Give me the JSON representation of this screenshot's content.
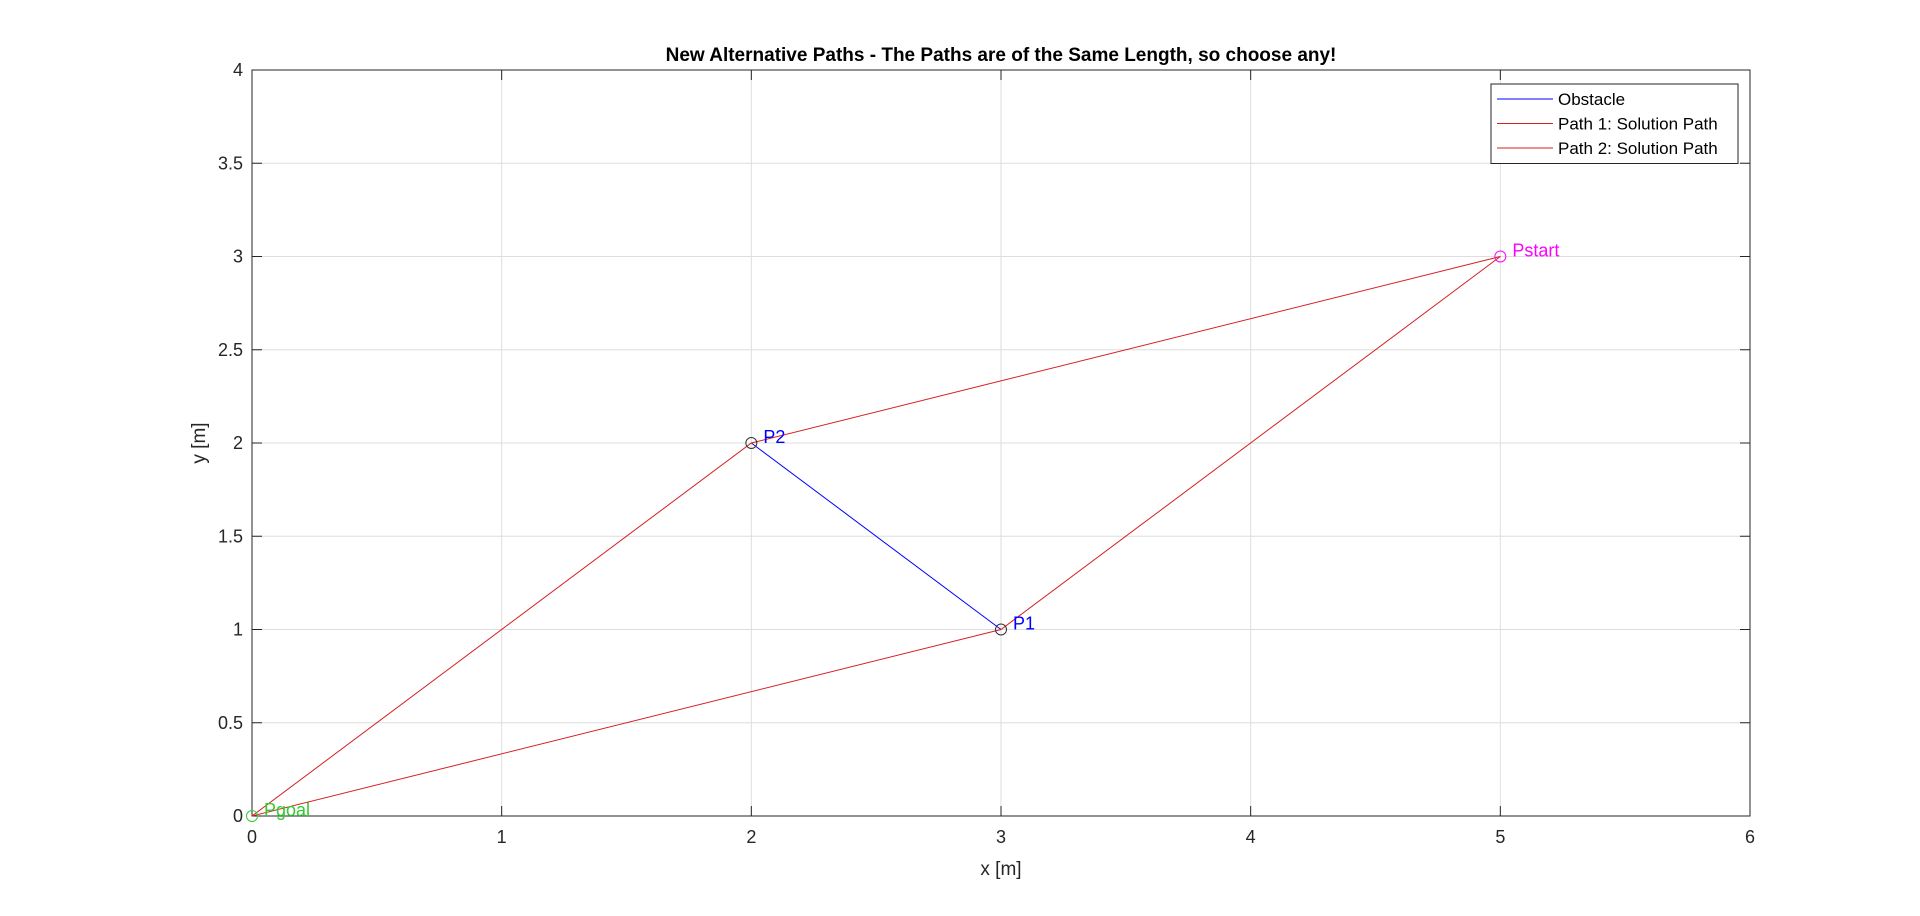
{
  "chart_data": {
    "type": "line",
    "title": "New Alternative Paths - The Paths are of the Same Length, so choose any!",
    "xlabel": "x [m]",
    "ylabel": "y [m]",
    "xlim": [
      0,
      6
    ],
    "ylim": [
      0,
      4
    ],
    "xticks": [
      0,
      1,
      2,
      3,
      4,
      5,
      6
    ],
    "yticks": [
      0,
      0.5,
      1,
      1.5,
      2,
      2.5,
      3,
      3.5,
      4
    ],
    "xtick_labels": [
      "0",
      "1",
      "2",
      "3",
      "4",
      "5",
      "6"
    ],
    "ytick_labels": [
      "0",
      "0.5",
      "1",
      "1.5",
      "2",
      "2.5",
      "3",
      "3.5",
      "4"
    ],
    "grid": true,
    "legend_position": "top-right",
    "series": [
      {
        "name": "Obstacle",
        "color": "#0000ff",
        "x": [
          2,
          3
        ],
        "y": [
          2,
          1
        ]
      },
      {
        "name": "Path 1: Solution Path",
        "color": "#d62020",
        "x": [
          5,
          2,
          0
        ],
        "y": [
          3,
          2,
          0
        ]
      },
      {
        "name": "Path 2: Solution Path",
        "color": "#d62020",
        "x": [
          5,
          3,
          0
        ],
        "y": [
          3,
          1,
          0
        ]
      }
    ],
    "points": [
      {
        "label": "Pstart",
        "x": 5,
        "y": 3,
        "marker_color": "#ff00ff",
        "label_color": "#ff00ff"
      },
      {
        "label": "P2",
        "x": 2,
        "y": 2,
        "marker_color": "#333333",
        "label_color": "#0000ff"
      },
      {
        "label": "P1",
        "x": 3,
        "y": 1,
        "marker_color": "#333333",
        "label_color": "#0000ff"
      },
      {
        "label": "Pgoal",
        "x": 0,
        "y": 0,
        "marker_color": "#33cc33",
        "label_color": "#33cc33"
      }
    ]
  }
}
